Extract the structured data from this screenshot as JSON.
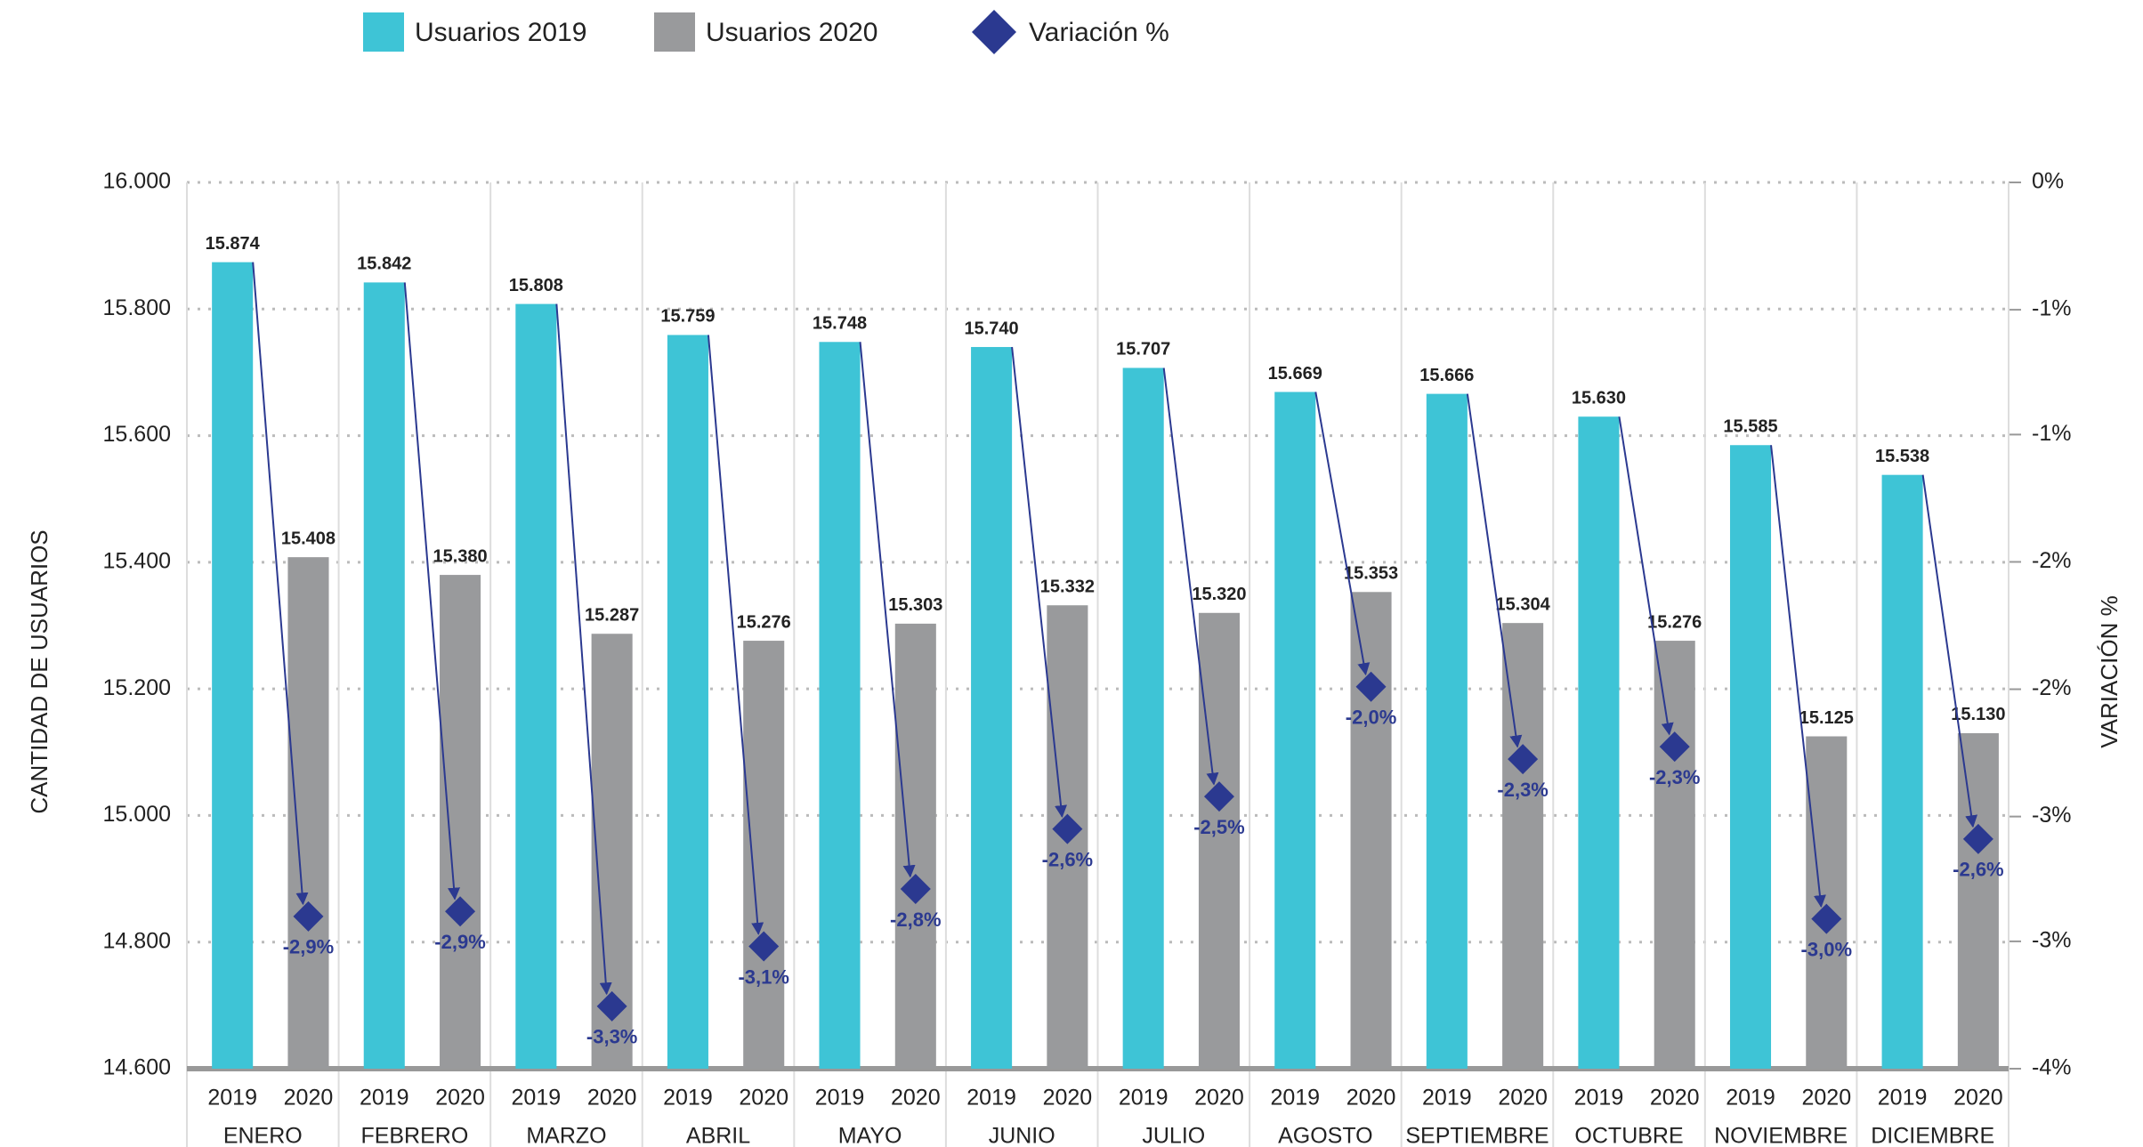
{
  "chart_data": {
    "type": "bar",
    "categories": [
      "ENERO",
      "FEBRERO",
      "MARZO",
      "ABRIL",
      "MAYO",
      "JUNIO",
      "JULIO",
      "AGOSTO",
      "SEPTIEMBRE",
      "OCTUBRE",
      "NOVIEMBRE",
      "DICIEMBRE"
    ],
    "sub_categories": [
      "2019",
      "2020"
    ],
    "y_label": "CANTIDAD DE USUARIOS",
    "y2_label": "VARIACIÓN %",
    "ylim": [
      14600,
      16000
    ],
    "yticks": [
      {
        "value": 14600,
        "label": "14.600"
      },
      {
        "value": 14800,
        "label": "14.800"
      },
      {
        "value": 15000,
        "label": "15.000"
      },
      {
        "value": 15200,
        "label": "15.200"
      },
      {
        "value": 15400,
        "label": "15.400"
      },
      {
        "value": 15600,
        "label": "15.600"
      },
      {
        "value": 15800,
        "label": "15.800"
      },
      {
        "value": 16000,
        "label": "16.000"
      }
    ],
    "y2lim": [
      -3.55,
      0
    ],
    "y2ticks": [
      {
        "value": -3.55,
        "label": "-4%"
      },
      {
        "value": -3.04,
        "label": "-3%"
      },
      {
        "value": -2.54,
        "label": "-3%"
      },
      {
        "value": -2.03,
        "label": "-2%"
      },
      {
        "value": -1.52,
        "label": "-2%"
      },
      {
        "value": -1.01,
        "label": "-1%"
      },
      {
        "value": -0.51,
        "label": "-1%"
      },
      {
        "value": 0,
        "label": "0%"
      }
    ],
    "grid": true,
    "series": [
      {
        "name": "Usuarios 2019",
        "color": "#3ec4d6",
        "values": [
          15874,
          15842,
          15808,
          15759,
          15748,
          15740,
          15707,
          15669,
          15666,
          15630,
          15585,
          15538
        ],
        "value_labels": [
          "15.874",
          "15.842",
          "15.808",
          "15.759",
          "15.748",
          "15.740",
          "15.707",
          "15.669",
          "15.666",
          "15.630",
          "15.585",
          "15.538"
        ]
      },
      {
        "name": "Usuarios 2020",
        "color": "#999a9c",
        "values": [
          15408,
          15380,
          15287,
          15276,
          15303,
          15332,
          15320,
          15353,
          15304,
          15276,
          15125,
          15130
        ],
        "value_labels": [
          "15.408",
          "15.380",
          "15.287",
          "15.276",
          "15.303",
          "15.332",
          "15.320",
          "15.353",
          "15.304",
          "15.276",
          "15.125",
          "15.130"
        ]
      },
      {
        "name": "Variación %",
        "color": "#2b3990",
        "axis": "y2",
        "type": "scatter",
        "values": [
          -2.94,
          -2.92,
          -3.3,
          -3.06,
          -2.83,
          -2.59,
          -2.46,
          -2.02,
          -2.31,
          -2.26,
          -2.95,
          -2.63
        ],
        "value_labels": [
          "-2,9%",
          "-2,9%",
          "-3,3%",
          "-3,1%",
          "-2,8%",
          "-2,6%",
          "-2,5%",
          "-2,0%",
          "-2,3%",
          "-2,3%",
          "-3,0%",
          "-2,6%"
        ]
      }
    ]
  }
}
